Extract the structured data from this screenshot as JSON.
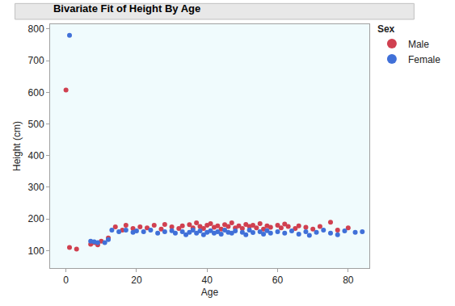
{
  "chart_data": {
    "type": "scatter",
    "title": "Bivariate Fit of Height By Age",
    "x_label": "Age",
    "y_label": "Height (cm)",
    "legend_title": "Sex",
    "legend": "top right",
    "grid": false,
    "marker": "circle",
    "xlim": [
      -4.5,
      86
    ],
    "xticks": [
      0,
      20,
      40,
      60,
      80
    ],
    "ylim": [
      45,
      815
    ],
    "yticks": [
      100,
      200,
      300,
      400,
      500,
      600,
      700,
      800
    ],
    "series": [
      {
        "name": "Male",
        "color": "#d04050",
        "x": [
          0,
          1,
          3,
          7,
          8,
          9,
          10,
          12,
          14,
          16,
          17,
          19,
          21,
          23,
          25,
          27,
          28,
          30,
          32,
          33,
          35,
          36,
          37,
          38,
          39,
          40,
          41,
          42,
          43,
          44,
          45,
          46,
          47,
          48,
          49,
          50,
          51,
          52,
          53,
          54,
          55,
          56,
          57,
          58,
          60,
          61,
          62,
          63,
          65,
          66,
          68,
          70,
          72,
          75,
          77,
          80
        ],
        "values": [
          607,
          110,
          105,
          120,
          125,
          118,
          130,
          140,
          175,
          165,
          180,
          170,
          175,
          172,
          180,
          168,
          183,
          175,
          170,
          178,
          182,
          172,
          188,
          176,
          170,
          180,
          185,
          174,
          178,
          168,
          182,
          176,
          188,
          172,
          178,
          170,
          183,
          176,
          180,
          172,
          185,
          168,
          178,
          174,
          180,
          172,
          184,
          176,
          170,
          178,
          174,
          168,
          176,
          190,
          165,
          172
        ]
      },
      {
        "name": "Female",
        "color": "#4070d8",
        "x": [
          1,
          7,
          8,
          9,
          11,
          12,
          13,
          15,
          17,
          19,
          20,
          22,
          24,
          26,
          28,
          30,
          31,
          33,
          34,
          35,
          36,
          37,
          38,
          39,
          40,
          41,
          42,
          43,
          44,
          45,
          46,
          47,
          48,
          50,
          51,
          52,
          53,
          55,
          56,
          57,
          58,
          60,
          62,
          64,
          66,
          68,
          69,
          71,
          73,
          75,
          77,
          79,
          82,
          84
        ],
        "values": [
          780,
          130,
          128,
          125,
          125,
          135,
          165,
          160,
          165,
          158,
          162,
          160,
          165,
          155,
          160,
          163,
          155,
          160,
          150,
          158,
          165,
          155,
          162,
          150,
          158,
          163,
          155,
          160,
          152,
          165,
          158,
          155,
          162,
          158,
          150,
          165,
          157,
          160,
          152,
          163,
          155,
          160,
          155,
          162,
          152,
          160,
          148,
          158,
          165,
          155,
          150,
          162,
          158,
          160
        ]
      }
    ]
  }
}
